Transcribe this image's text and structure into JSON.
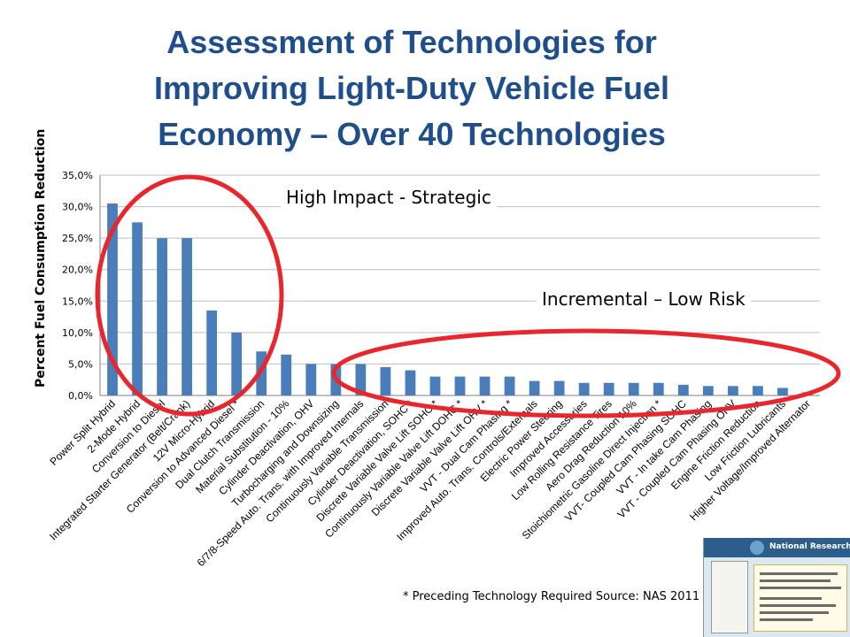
{
  "title": {
    "line1": "Assessment of Technologies for",
    "line2": "Improving Light-Duty Vehicle Fuel",
    "line3": "Economy – Over 40 Technologies"
  },
  "annotations": {
    "high_impact": "High Impact - Strategic",
    "incremental": "Incremental – Low Risk"
  },
  "footnote": "* Preceding Technology Required Source: NAS 2011",
  "booklet": {
    "header": "National Research Council"
  },
  "colors": {
    "bar": "#4a7ebb",
    "title": "#1f4e8c",
    "highlight_ellipse": "#e8262b",
    "grid": "#bfbfbf"
  },
  "chart_data": {
    "type": "bar",
    "ylabel": "Percent Fuel Consumption Reduction",
    "ylim": [
      0,
      35
    ],
    "yticks": [
      "0,0%",
      "5,0%",
      "10,0%",
      "15,0%",
      "20,0%",
      "25,0%",
      "30,0%",
      "35,0%"
    ],
    "grid": "horizontal",
    "categories": [
      "Power Split Hybrid",
      "2-Mode Hybrid",
      "Conversion to Diesel",
      "Integrated Starter Generator (Belt/Crank)",
      "12V Micro-Hybrid",
      "Conversion to Advanced Diesel *",
      "Dual Clutch Transmission",
      "Material Substitution - 10%",
      "Cylinder Deactivation, OHV",
      "Turbocharging and Downsizing",
      "6/7/8-Speed Auto. Trans. with Improved Internals",
      "Continuously Variable Transmission",
      "Cylinder Deactivation, SOHC *",
      "Discrete Variable Valve Lift SOHC *",
      "Continuously Variable Valve Lift DOHC *",
      "Discrete Variable Valve Lift OHV *",
      "VVT - Dual Cam Phasing *",
      "Improved Auto. Trans. Controls/Externals",
      "Electric Power Steering",
      "Improved Accessories",
      "Low Rolling Resistance Tires",
      "Aero Drag Reduction 10%",
      "Stoichiometric Gasoline Direct Injection *",
      "VVT- Coupled Cam Phasing SOHC",
      "VVT - In take Cam Phasing",
      "VVT - Coupled Cam Phasing OHV",
      "Engine Friction Reduction",
      "Low Friction Lubricants",
      "Higher Voltage/Improved Alternator"
    ],
    "values": [
      30.5,
      27.5,
      25.0,
      25.0,
      13.5,
      10.0,
      7.0,
      6.5,
      5.0,
      5.0,
      5.0,
      4.5,
      4.0,
      3.0,
      3.0,
      3.0,
      3.0,
      2.3,
      2.3,
      2.0,
      2.0,
      2.0,
      2.0,
      1.7,
      1.5,
      1.5,
      1.5,
      1.2,
      0.5
    ]
  }
}
